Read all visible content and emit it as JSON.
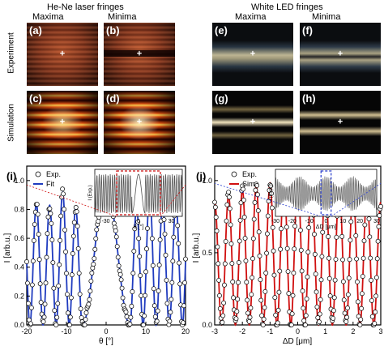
{
  "headers": {
    "laser_title": "He-Ne laser fringes",
    "led_title": "White LED fringes",
    "maxima": "Maxima",
    "minima": "Minima",
    "experiment": "Experiment",
    "simulation": "Simulation"
  },
  "panel_labels": {
    "a": "(a)",
    "b": "(b)",
    "c": "(c)",
    "d": "(d)",
    "e": "(e)",
    "f": "(f)",
    "g": "(g)",
    "h": "(h)",
    "i": "(i)",
    "j": "(j)"
  },
  "colors": {
    "fit_blue": "#1f3bbf",
    "sim_red": "#d01010",
    "marker": "#000000"
  },
  "chart_data": [
    {
      "type": "scatter",
      "panel": "(i)",
      "xlabel": "θ [°]",
      "ylabel": "I [arb.u.]",
      "xlim": [
        -20,
        20
      ],
      "ylim": [
        0,
        1.1
      ],
      "xticks": [
        "-20",
        "-10",
        "0",
        "10",
        "20"
      ],
      "yticks": [
        "0.0",
        "0.2",
        "0.4",
        "0.6",
        "0.8",
        "1.0"
      ],
      "legend": [
        "Exp.",
        "Fit"
      ],
      "legend_position": "top-left",
      "series": [
        {
          "name": "Exp.",
          "marker": "open-circle",
          "model": {
            "x_from": -20,
            "x_to": 20,
            "central_peak": 0.97,
            "side_peak_min": 0.86,
            "fringe_period_outer": 3.3,
            "central_lobe_halfwidth": 6
          }
        },
        {
          "name": "Fit",
          "line_color": "#1f3bbf"
        }
      ],
      "inset": {
        "ylabel": "I (Exp.)",
        "xlabel": "θ [°]",
        "xticks": [
          "-30",
          "0",
          "30"
        ],
        "highlight_range": [
          -20,
          20
        ]
      }
    },
    {
      "type": "scatter",
      "panel": "(j)",
      "xlabel": "ΔD [μm]",
      "ylabel": "I [arb.u.]",
      "xlim": [
        -3,
        3
      ],
      "ylim": [
        0,
        1.1
      ],
      "xticks": [
        "-3",
        "-2",
        "-1",
        "0",
        "1",
        "2",
        "3"
      ],
      "yticks": [
        "0.0",
        "0.5",
        "1.0"
      ],
      "legend": [
        "Exp.",
        "Sim."
      ],
      "legend_position": "top-center",
      "series": [
        {
          "name": "Exp.",
          "marker": "open-circle",
          "model": {
            "period": 0.5,
            "peak_max": 1.0,
            "envelope_falloff": 0.15
          }
        },
        {
          "name": "Sim.",
          "line_color": "#d01010"
        }
      ],
      "inset": {
        "ylabel": "I (Exp.)",
        "xlabel": "ΔD [μm]",
        "xticks": [
          "-30",
          "-20",
          "-10",
          "0",
          "10",
          "20",
          "30"
        ],
        "highlight_range": [
          -3,
          3
        ]
      }
    }
  ]
}
